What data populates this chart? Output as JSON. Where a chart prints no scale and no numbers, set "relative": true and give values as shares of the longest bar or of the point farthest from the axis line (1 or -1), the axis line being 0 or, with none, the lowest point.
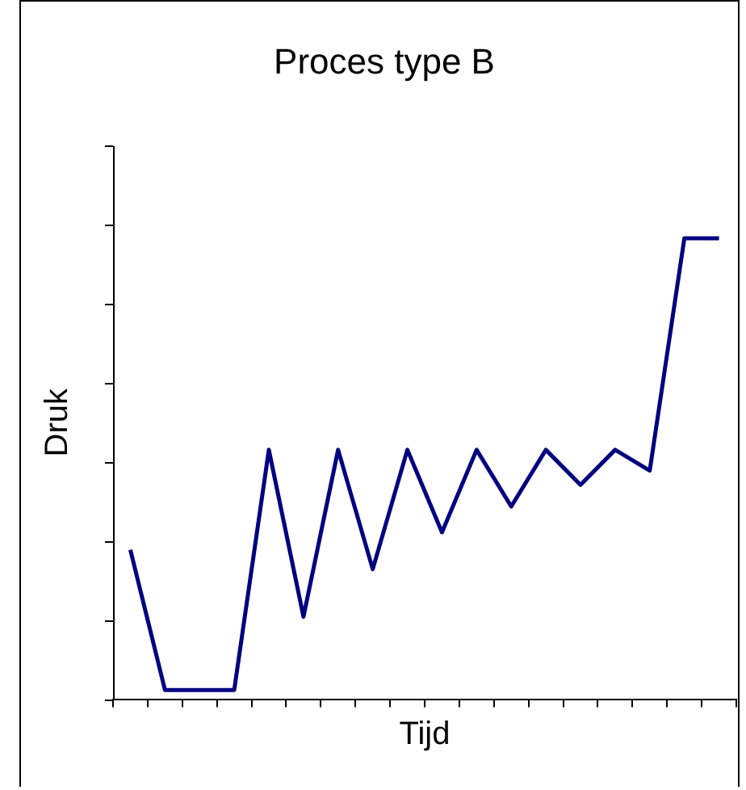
{
  "chart_data": {
    "type": "line",
    "title": "Proces type B",
    "xlabel": "Tijd",
    "ylabel": "Druk",
    "relative": true,
    "categories": [
      null,
      null,
      null,
      null,
      null,
      null,
      null,
      null,
      null,
      null,
      null,
      null,
      null,
      null,
      null,
      null,
      null,
      null
    ],
    "series": [
      {
        "color": "#000080",
        "values": [
          0.324,
          0.02,
          0.02,
          0.02,
          0.541,
          0.179,
          0.541,
          0.282,
          0.541,
          0.362,
          0.541,
          0.418,
          0.541,
          0.465,
          0.541,
          0.496,
          1,
          1
        ]
      }
    ],
    "marker": "none",
    "line_style": "solid",
    "grid": false,
    "legend": false
  }
}
